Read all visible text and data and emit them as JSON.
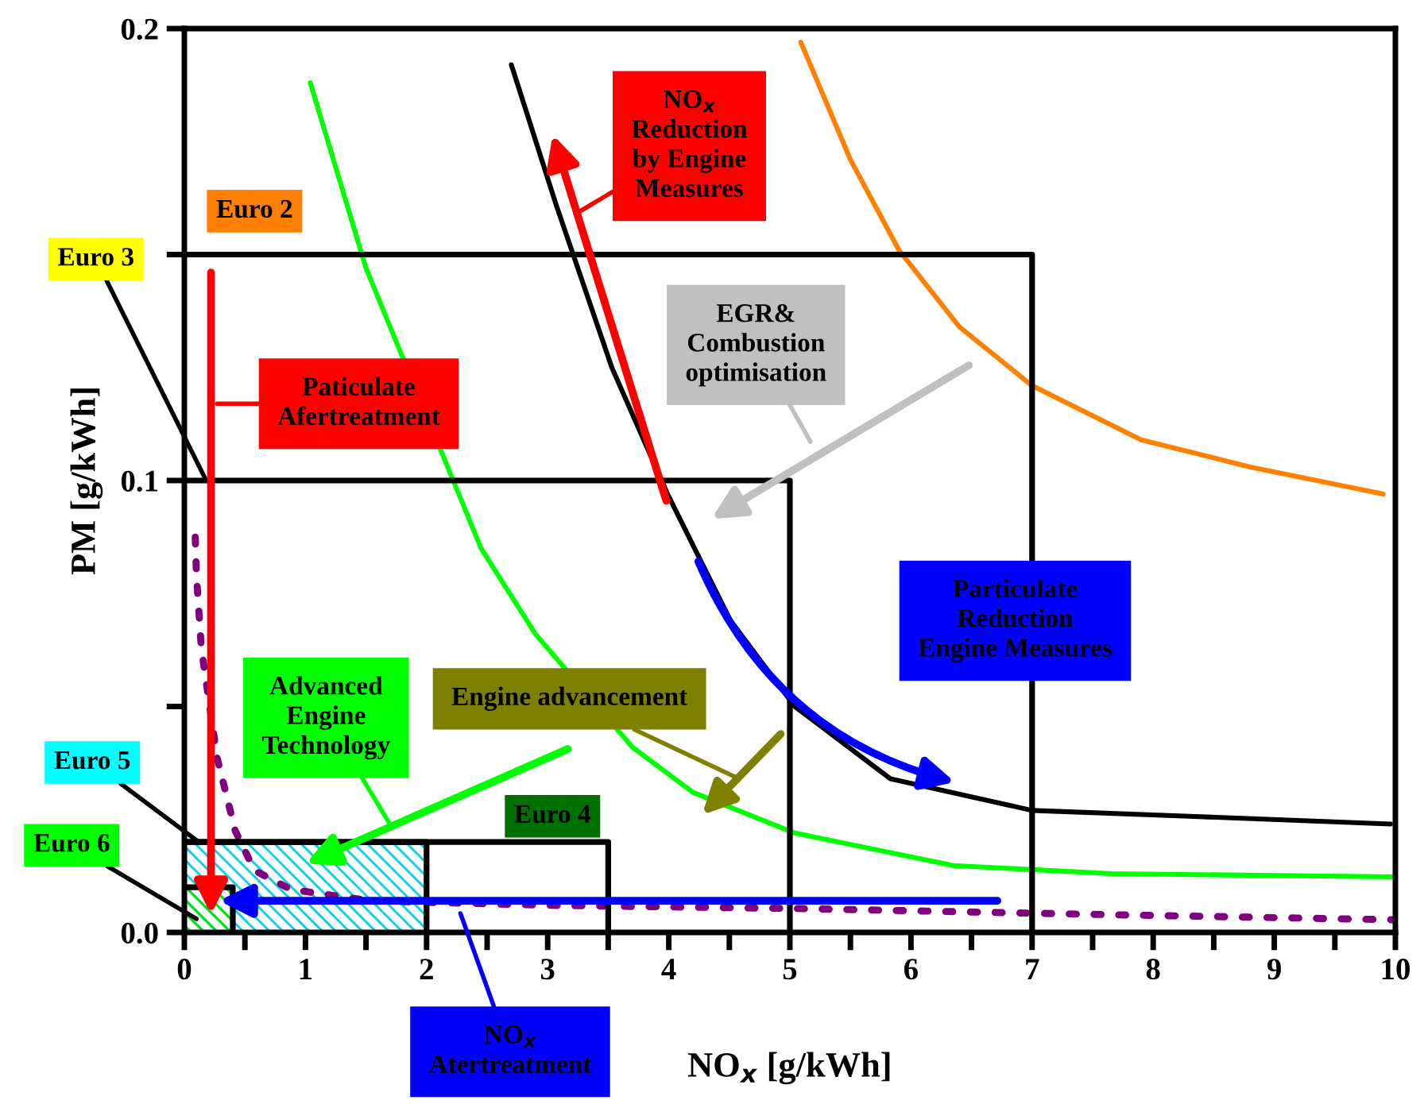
{
  "chart_data": {
    "type": "line",
    "xlabel": "NO$_{x}$ [g/kWh]",
    "ylabel": "PM [g/kWh]",
    "xlim": [
      0,
      10
    ],
    "ylim": [
      0,
      0.2
    ],
    "xticks": [
      0,
      {
        "value": 0.5,
        "label": null
      },
      1,
      {
        "value": 1.5,
        "label": null
      },
      2,
      {
        "value": 2.5,
        "label": null
      },
      3,
      {
        "value": 3.5,
        "label": null
      },
      4,
      {
        "value": 4.5,
        "label": null
      },
      5,
      {
        "value": 5.5,
        "label": null
      },
      6,
      {
        "value": 6.5,
        "label": null
      },
      7,
      {
        "value": 7.5,
        "label": null
      },
      8,
      {
        "value": 8.5,
        "label": null
      },
      9,
      {
        "value": 9.5,
        "label": null
      },
      10
    ],
    "yticks": [
      {
        "value": 0,
        "label": "0.0"
      },
      {
        "value": 0.05,
        "label": null
      },
      0.1,
      {
        "value": 0.15,
        "label": null
      },
      0.2
    ],
    "series": [
      {
        "color": "#ff8000",
        "x": [
          5.09,
          5.5,
          5.9,
          6.4,
          7.0,
          7.9,
          8.8,
          9.9
        ],
        "values": [
          0.197,
          0.171,
          0.151,
          0.134,
          0.121,
          0.109,
          0.103,
          0.097
        ]
      },
      {
        "color": "#000000",
        "x": [
          2.7,
          3.07,
          3.53,
          3.99,
          4.51,
          5.04,
          5.83,
          7.0,
          8.3,
          9.96
        ],
        "values": [
          0.192,
          0.161,
          0.125,
          0.097,
          0.069,
          0.05,
          0.034,
          0.027,
          0.0257,
          0.024
        ]
      },
      {
        "color": "#00ff00",
        "x": [
          1.04,
          1.5,
          2.45,
          2.9,
          3.7,
          4.2,
          5.04,
          6.35,
          7.66,
          10.0
        ],
        "values": [
          0.188,
          0.147,
          0.085,
          0.066,
          0.041,
          0.031,
          0.022,
          0.0148,
          0.013,
          0.0123
        ]
      },
      {
        "color": "#800080",
        "line_style": "dotted",
        "x": [
          0.09,
          0.1,
          0.14,
          0.27,
          0.42,
          0.58,
          0.88,
          1.54,
          3.0,
          5.04,
          7.5,
          10.0
        ],
        "values": [
          0.0875,
          0.079,
          0.063,
          0.0387,
          0.0225,
          0.0137,
          0.0095,
          0.007,
          0.006,
          0.0053,
          0.004,
          0.0028
        ]
      },
      {
        "name": "Euro 2",
        "color": "#000000",
        "x": [
          0,
          7,
          7
        ],
        "values": [
          0.15,
          0.15,
          0
        ]
      },
      {
        "name": "Euro 3",
        "color": "#000000",
        "x": [
          0,
          5,
          5
        ],
        "values": [
          0.1,
          0.1,
          0
        ]
      },
      {
        "name": "Euro 4",
        "color": "#000000",
        "x": [
          0,
          3.5,
          3.5
        ],
        "values": [
          0.02,
          0.02,
          0
        ]
      },
      {
        "name": "Euro 5",
        "type": "area",
        "color": "#00c8e6",
        "x": [
          0,
          2
        ],
        "values": [
          0.02,
          0.02
        ]
      },
      {
        "name": "Euro 6",
        "type": "area",
        "color": "#00e000",
        "x": [
          0,
          0.4
        ],
        "values": [
          0.01,
          0.01
        ]
      }
    ],
    "annotations": [
      "NO$_{x}$\nReduction\nby Engine\nMeasures",
      "Paticulate\nAfertreatment",
      "EGR&\nCombustion\noptimisation",
      "Particulate\nReduction\nEngine Measures",
      "Advanced\nEngine\nTechnology",
      "Engine advancement",
      "NO$_{x}$\nAtertreatment"
    ]
  }
}
